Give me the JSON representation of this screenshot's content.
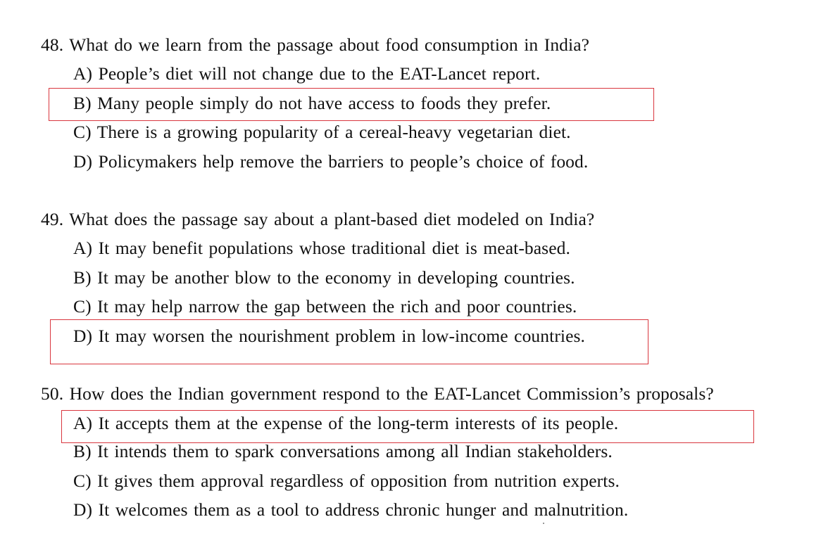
{
  "questions": [
    {
      "stem": "48. What do we learn from the passage about food consumption in India?",
      "options": [
        "A) People’s diet will not change due to the EAT-Lancet report.",
        "B) Many people simply do not have access to foods they prefer.",
        "C) There is a growing popularity of a cereal-heavy vegetarian diet.",
        "D) Policymakers help remove the barriers to people’s choice of food."
      ],
      "highlighted_option": "B"
    },
    {
      "stem": "49. What does the passage say about a plant-based diet modeled on India?",
      "options": [
        "A) It may benefit populations whose traditional diet is meat-based.",
        "B) It may be another blow to the economy in developing countries.",
        "C) It may help narrow the gap between the rich and poor countries.",
        "D) It may worsen the nourishment problem in low-income countries."
      ],
      "highlighted_option": "D"
    },
    {
      "stem": "50. How does the Indian government respond to the EAT-Lancet Commission’s proposals?",
      "options": [
        "A) It accepts them at the expense of the long-term interests of its people.",
        "B) It intends them to spark conversations among all Indian stakeholders.",
        "C) It gives them approval regardless of opposition from nutrition experts.",
        "D) It welcomes them as a tool to address chronic hunger and malnutrition."
      ],
      "highlighted_option": "A"
    }
  ],
  "colors": {
    "text": "#111111",
    "highlight_box": "#d9363e",
    "background": "#ffffff"
  }
}
